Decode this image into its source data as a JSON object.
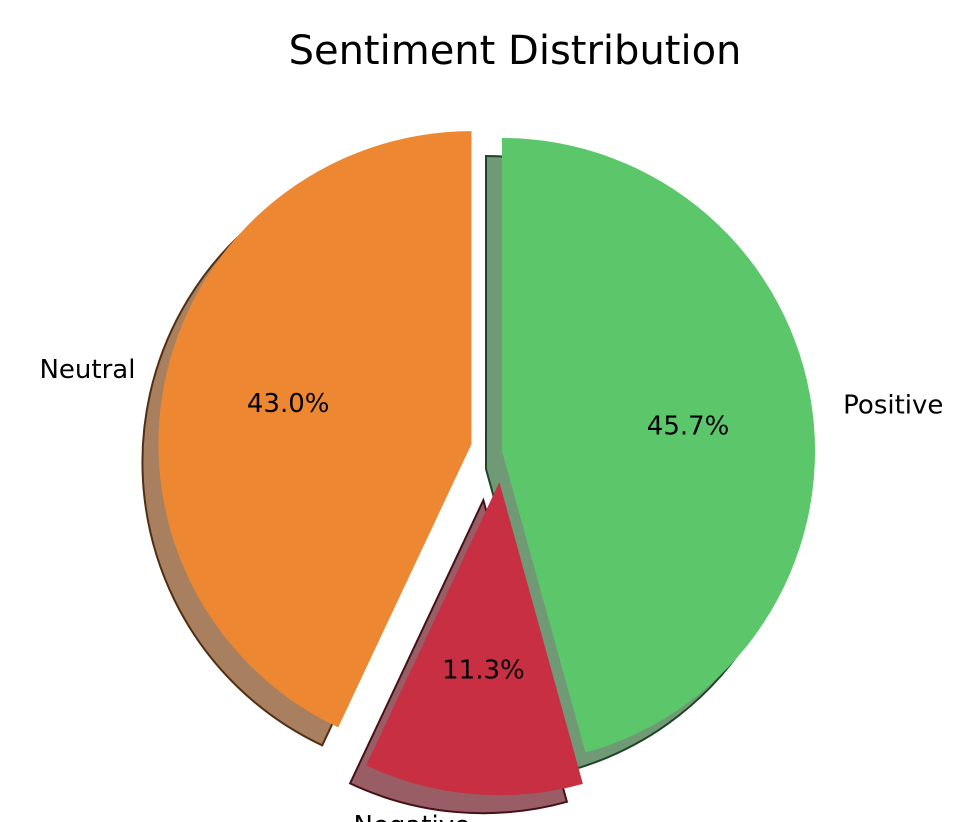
{
  "chart_data": {
    "type": "pie",
    "title": "Sentiment Distribution",
    "start_angle_deg": 90,
    "direction": "clockwise",
    "shadow": true,
    "explode": [
      0,
      0.1,
      0.1
    ],
    "slices": [
      {
        "label": "Positive",
        "value": 45.7,
        "pct_label": "45.7%",
        "color": "#5cc66a"
      },
      {
        "label": "Negative",
        "value": 11.3,
        "pct_label": "11.3%",
        "color": "#c82f42"
      },
      {
        "label": "Neutral",
        "value": 43.0,
        "pct_label": "43.0%",
        "color": "#ee8732"
      }
    ]
  }
}
